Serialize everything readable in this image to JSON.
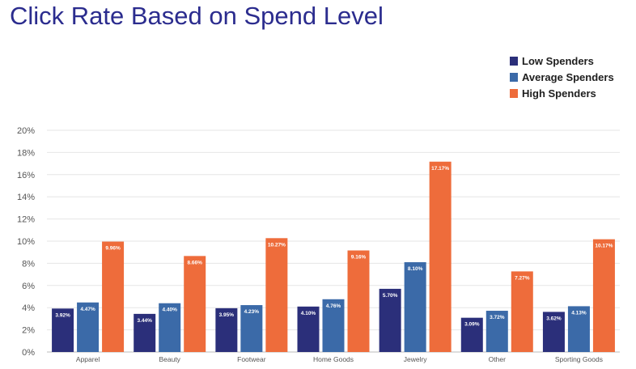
{
  "chart_data": {
    "type": "bar",
    "title": "Click Rate Based on Spend Level",
    "xlabel": "",
    "ylabel": "",
    "ylim": [
      0,
      20
    ],
    "y_ticks": [
      "0%",
      "2%",
      "4%",
      "6%",
      "8%",
      "10%",
      "12%",
      "14%",
      "16%",
      "18%",
      "20%"
    ],
    "grid": true,
    "legend_position": "top-right",
    "categories": [
      "Apparel",
      "Beauty",
      "Footwear",
      "Home Goods",
      "Jewelry",
      "Other",
      "Sporting Goods"
    ],
    "series": [
      {
        "name": "Low Spenders",
        "color": "#2b2f7a",
        "values": [
          3.92,
          3.44,
          3.95,
          4.1,
          5.7,
          3.09,
          3.62
        ],
        "labels": [
          "3.92%",
          "3.44%",
          "3.95%",
          "4.10%",
          "5.70%",
          "3.09%",
          "3.62%"
        ]
      },
      {
        "name": "Average Spenders",
        "color": "#3b6aa8",
        "values": [
          4.47,
          4.4,
          4.23,
          4.76,
          8.1,
          3.72,
          4.13
        ],
        "labels": [
          "4.47%",
          "4.40%",
          "4.23%",
          "4.76%",
          "8.10%",
          "3.72%",
          "4.13%"
        ]
      },
      {
        "name": "High Spenders",
        "color": "#ee6c3b",
        "values": [
          9.96,
          8.66,
          10.27,
          9.16,
          17.17,
          7.27,
          10.17
        ],
        "labels": [
          "9.96%",
          "8.66%",
          "10.27%",
          "9.16%",
          "17.17%",
          "7.27%",
          "10.17%"
        ]
      }
    ]
  }
}
